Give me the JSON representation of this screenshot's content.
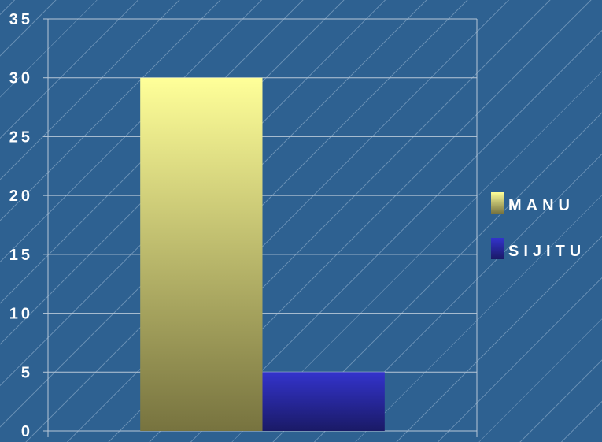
{
  "chart_data": {
    "type": "bar",
    "categories": [
      ""
    ],
    "series": [
      {
        "name": "MANU",
        "values": [
          30
        ],
        "color_top": "#ffff99",
        "color_bottom": "#77733f"
      },
      {
        "name": "SIJITU",
        "values": [
          5
        ],
        "color_top": "#3333cc",
        "color_bottom": "#1a1a66"
      }
    ],
    "title": "",
    "xlabel": "",
    "ylabel": "",
    "ylim": [
      0,
      35
    ],
    "yticks": [
      "0",
      "5",
      "10",
      "15",
      "20",
      "25",
      "30",
      "35"
    ],
    "grid": true,
    "legend_position": "right"
  }
}
